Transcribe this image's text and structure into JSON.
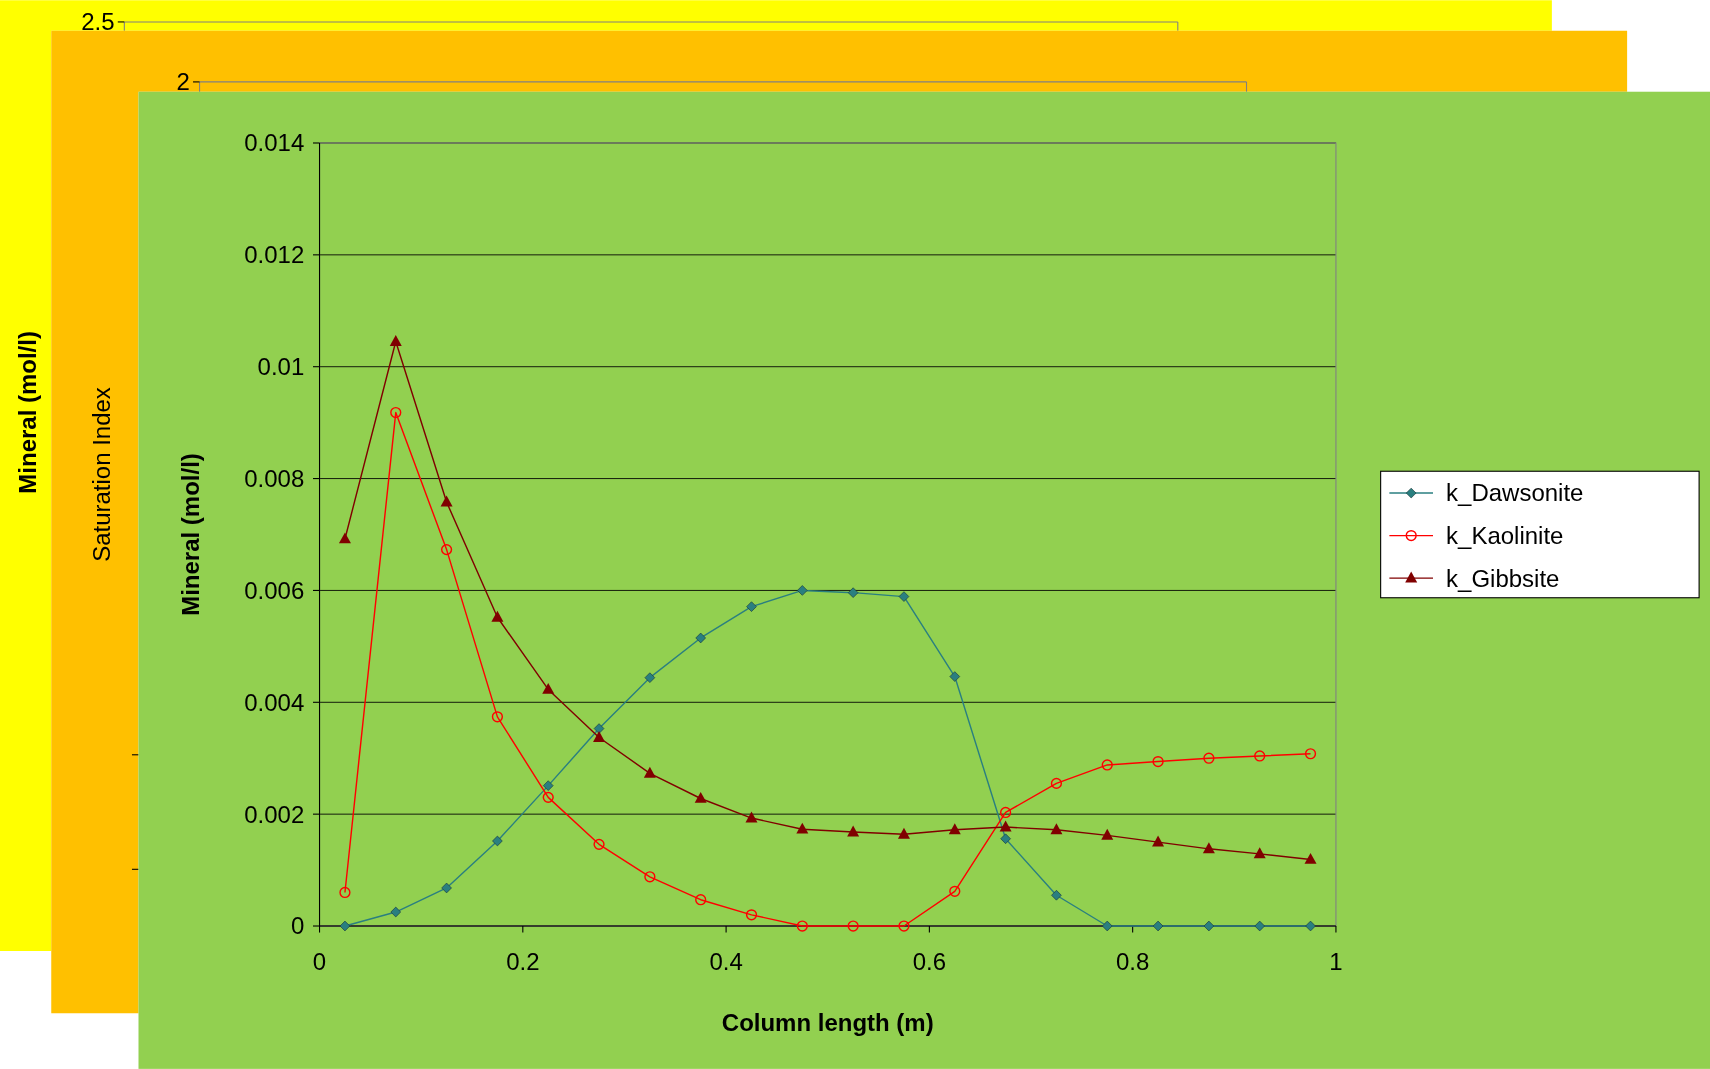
{
  "chart_data": [
    {
      "type": "other",
      "ylabel": "Mineral (mol/l)",
      "annotations": [
        "2.5"
      ]
    },
    {
      "type": "other",
      "ylabel": "Saturation Index",
      "annotations": [
        "2"
      ]
    },
    {
      "type": "line",
      "xlabel": "Column length (m)",
      "ylabel": "Mineral (mol/l)",
      "xlim": [
        0,
        1
      ],
      "xticks": [
        0,
        0.2,
        0.4,
        0.6,
        0.8,
        1
      ],
      "ylim": [
        0,
        0.014
      ],
      "yticks": [
        0,
        0.002,
        0.004,
        0.006,
        0.008,
        0.01,
        0.012,
        0.014
      ],
      "grid": "y",
      "legend": "right",
      "x": [
        0.025,
        0.075,
        0.125,
        0.175,
        0.225,
        0.275,
        0.325,
        0.375,
        0.425,
        0.475,
        0.525,
        0.575,
        0.625,
        0.675,
        0.725,
        0.775,
        0.825,
        0.875,
        0.925,
        0.975
      ],
      "series": [
        {
          "name": "k_Dawsonite",
          "color": "#2a7f80",
          "marker": "diamond",
          "values": [
            0,
            0.00025,
            0.00068,
            0.00152,
            0.00251,
            0.00353,
            0.00444,
            0.00515,
            0.00571,
            0.006,
            0.00596,
            0.00589,
            0.00446,
            0.00156,
            0.00055,
            0,
            0,
            0,
            0,
            0
          ]
        },
        {
          "name": "k_Kaolinite",
          "color": "#ff0000",
          "marker": "circle",
          "values": [
            0.0006,
            0.00918,
            0.00673,
            0.00374,
            0.0023,
            0.00146,
            0.00088,
            0.00047,
            0.0002,
            0,
            0,
            0,
            0.00062,
            0.00203,
            0.00255,
            0.00288,
            0.00294,
            0.003,
            0.00304,
            0.00308
          ]
        },
        {
          "name": "k_Gibbsite",
          "color": "#800000",
          "marker": "triangle",
          "values": [
            0.00692,
            0.01045,
            0.00758,
            0.00552,
            0.00423,
            0.00337,
            0.00273,
            0.00228,
            0.00193,
            0.00173,
            0.00168,
            0.00164,
            0.00172,
            0.00177,
            0.00172,
            0.00162,
            0.0015,
            0.00138,
            0.00129,
            0.00119
          ]
        }
      ]
    }
  ]
}
